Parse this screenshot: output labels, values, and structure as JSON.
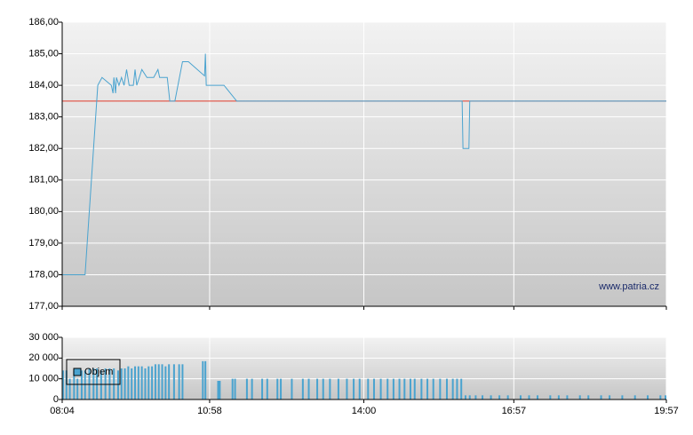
{
  "chart_data": [
    {
      "type": "line",
      "watermark": "www.patria.cz",
      "x": [
        "08:04",
        "08:31",
        "08:46",
        "08:51",
        "09:02",
        "09:04",
        "09:05",
        "09:07",
        "09:08",
        "09:11",
        "09:14",
        "09:17",
        "09:20",
        "09:23",
        "09:28",
        "09:30",
        "09:32",
        "09:35",
        "09:38",
        "09:44",
        "09:52",
        "09:57",
        "09:59",
        "10:08",
        "10:10",
        "10:11",
        "10:17",
        "10:26",
        "10:33",
        "10:52",
        "10:53",
        "10:54",
        "11:15",
        "11:30",
        "15:56",
        "15:57",
        "16:04",
        "16:05",
        "19:57"
      ],
      "series": [
        {
          "color": "#4aa3cf",
          "values": [
            178.0,
            178.0,
            184.0,
            184.25,
            184.0,
            183.75,
            184.25,
            183.75,
            184.25,
            184.0,
            184.25,
            184.0,
            184.5,
            184.0,
            184.0,
            184.5,
            184.0,
            184.25,
            184.5,
            184.25,
            184.25,
            184.5,
            184.25,
            184.25,
            183.75,
            183.5,
            183.5,
            184.75,
            184.75,
            184.3,
            185.0,
            184.0,
            184.0,
            183.5,
            183.5,
            182.0,
            182.0,
            183.5,
            183.5
          ]
        }
      ],
      "reference_line": {
        "value": 183.5,
        "color": "#e03a2a"
      },
      "ylim": [
        177,
        186
      ],
      "yticks": [
        {
          "value": 177,
          "label": "177,00"
        },
        {
          "value": 178,
          "label": "178,00"
        },
        {
          "value": 179,
          "label": "179,00"
        },
        {
          "value": 180,
          "label": "180,00"
        },
        {
          "value": 181,
          "label": "181,00"
        },
        {
          "value": 182,
          "label": "182,00"
        },
        {
          "value": 183,
          "label": "183,00"
        },
        {
          "value": 184,
          "label": "184,00"
        },
        {
          "value": 185,
          "label": "185,00"
        },
        {
          "value": 186,
          "label": "186,00"
        }
      ],
      "grid": true
    },
    {
      "type": "bar",
      "x": [
        "08:05",
        "08:09",
        "08:13",
        "08:18",
        "08:22",
        "08:27",
        "08:31",
        "08:36",
        "08:41",
        "08:45",
        "08:50",
        "08:55",
        "09:00",
        "09:05",
        "09:10",
        "09:14",
        "09:18",
        "09:22",
        "09:26",
        "09:30",
        "09:34",
        "09:38",
        "09:42",
        "09:46",
        "09:50",
        "09:54",
        "09:58",
        "10:02",
        "10:06",
        "10:10",
        "10:16",
        "10:22",
        "10:26",
        "10:50",
        "10:53",
        "11:08",
        "11:10",
        "11:25",
        "11:28",
        "11:42",
        "11:48",
        "12:00",
        "12:06",
        "12:18",
        "12:22",
        "12:35",
        "12:48",
        "12:55",
        "13:05",
        "13:12",
        "13:20",
        "13:30",
        "13:40",
        "13:48",
        "13:55",
        "14:05",
        "14:12",
        "14:20",
        "14:28",
        "14:35",
        "14:42",
        "14:48",
        "14:55",
        "15:00",
        "15:08",
        "15:15",
        "15:22",
        "15:30",
        "15:38",
        "15:45",
        "15:50",
        "15:55",
        "16:00",
        "16:05",
        "16:12",
        "16:20",
        "16:30",
        "16:40",
        "16:50",
        "17:05",
        "17:15",
        "17:25",
        "17:40",
        "17:50",
        "18:00",
        "18:15",
        "18:25",
        "18:40",
        "18:50",
        "19:05",
        "19:20",
        "19:35",
        "19:50",
        "19:56"
      ],
      "series": [
        {
          "name": "Objem",
          "color": "#4aa3cf",
          "values": [
            14000,
            14000,
            10000,
            14000,
            10000,
            14000,
            14000,
            15000,
            15000,
            15000,
            14000,
            15000,
            15000,
            15000,
            14000,
            15000,
            15000,
            16000,
            15000,
            16000,
            16000,
            16000,
            15000,
            16000,
            16000,
            17000,
            17000,
            17000,
            16000,
            17000,
            17000,
            17000,
            17000,
            18500,
            18500,
            9000,
            9000,
            10000,
            10000,
            10000,
            10000,
            10000,
            10000,
            10000,
            10000,
            10000,
            10000,
            10000,
            10000,
            10000,
            10000,
            10000,
            10000,
            10000,
            10000,
            10000,
            10000,
            10000,
            10000,
            10000,
            10000,
            10000,
            10000,
            10000,
            10000,
            10000,
            10000,
            10000,
            10000,
            10000,
            10000,
            10000,
            2000,
            2000,
            2000,
            2000,
            2000,
            2000,
            2000,
            2000,
            2000,
            2000,
            2000,
            2000,
            2000,
            2000,
            2000,
            2000,
            2000,
            2000,
            2000,
            2000,
            2000,
            2000
          ]
        }
      ],
      "xlim": [
        "08:04",
        "19:57"
      ],
      "xticks": [
        "08:04",
        "10:58",
        "14:00",
        "16:57",
        "19:57"
      ],
      "ylim": [
        0,
        30000
      ],
      "yticks": [
        0,
        {
          "value": 10000,
          "label": "10 000"
        },
        {
          "value": 20000,
          "label": "20 000"
        },
        {
          "value": 30000,
          "label": "30 000"
        }
      ],
      "grid": true,
      "legend": "upper left"
    }
  ]
}
